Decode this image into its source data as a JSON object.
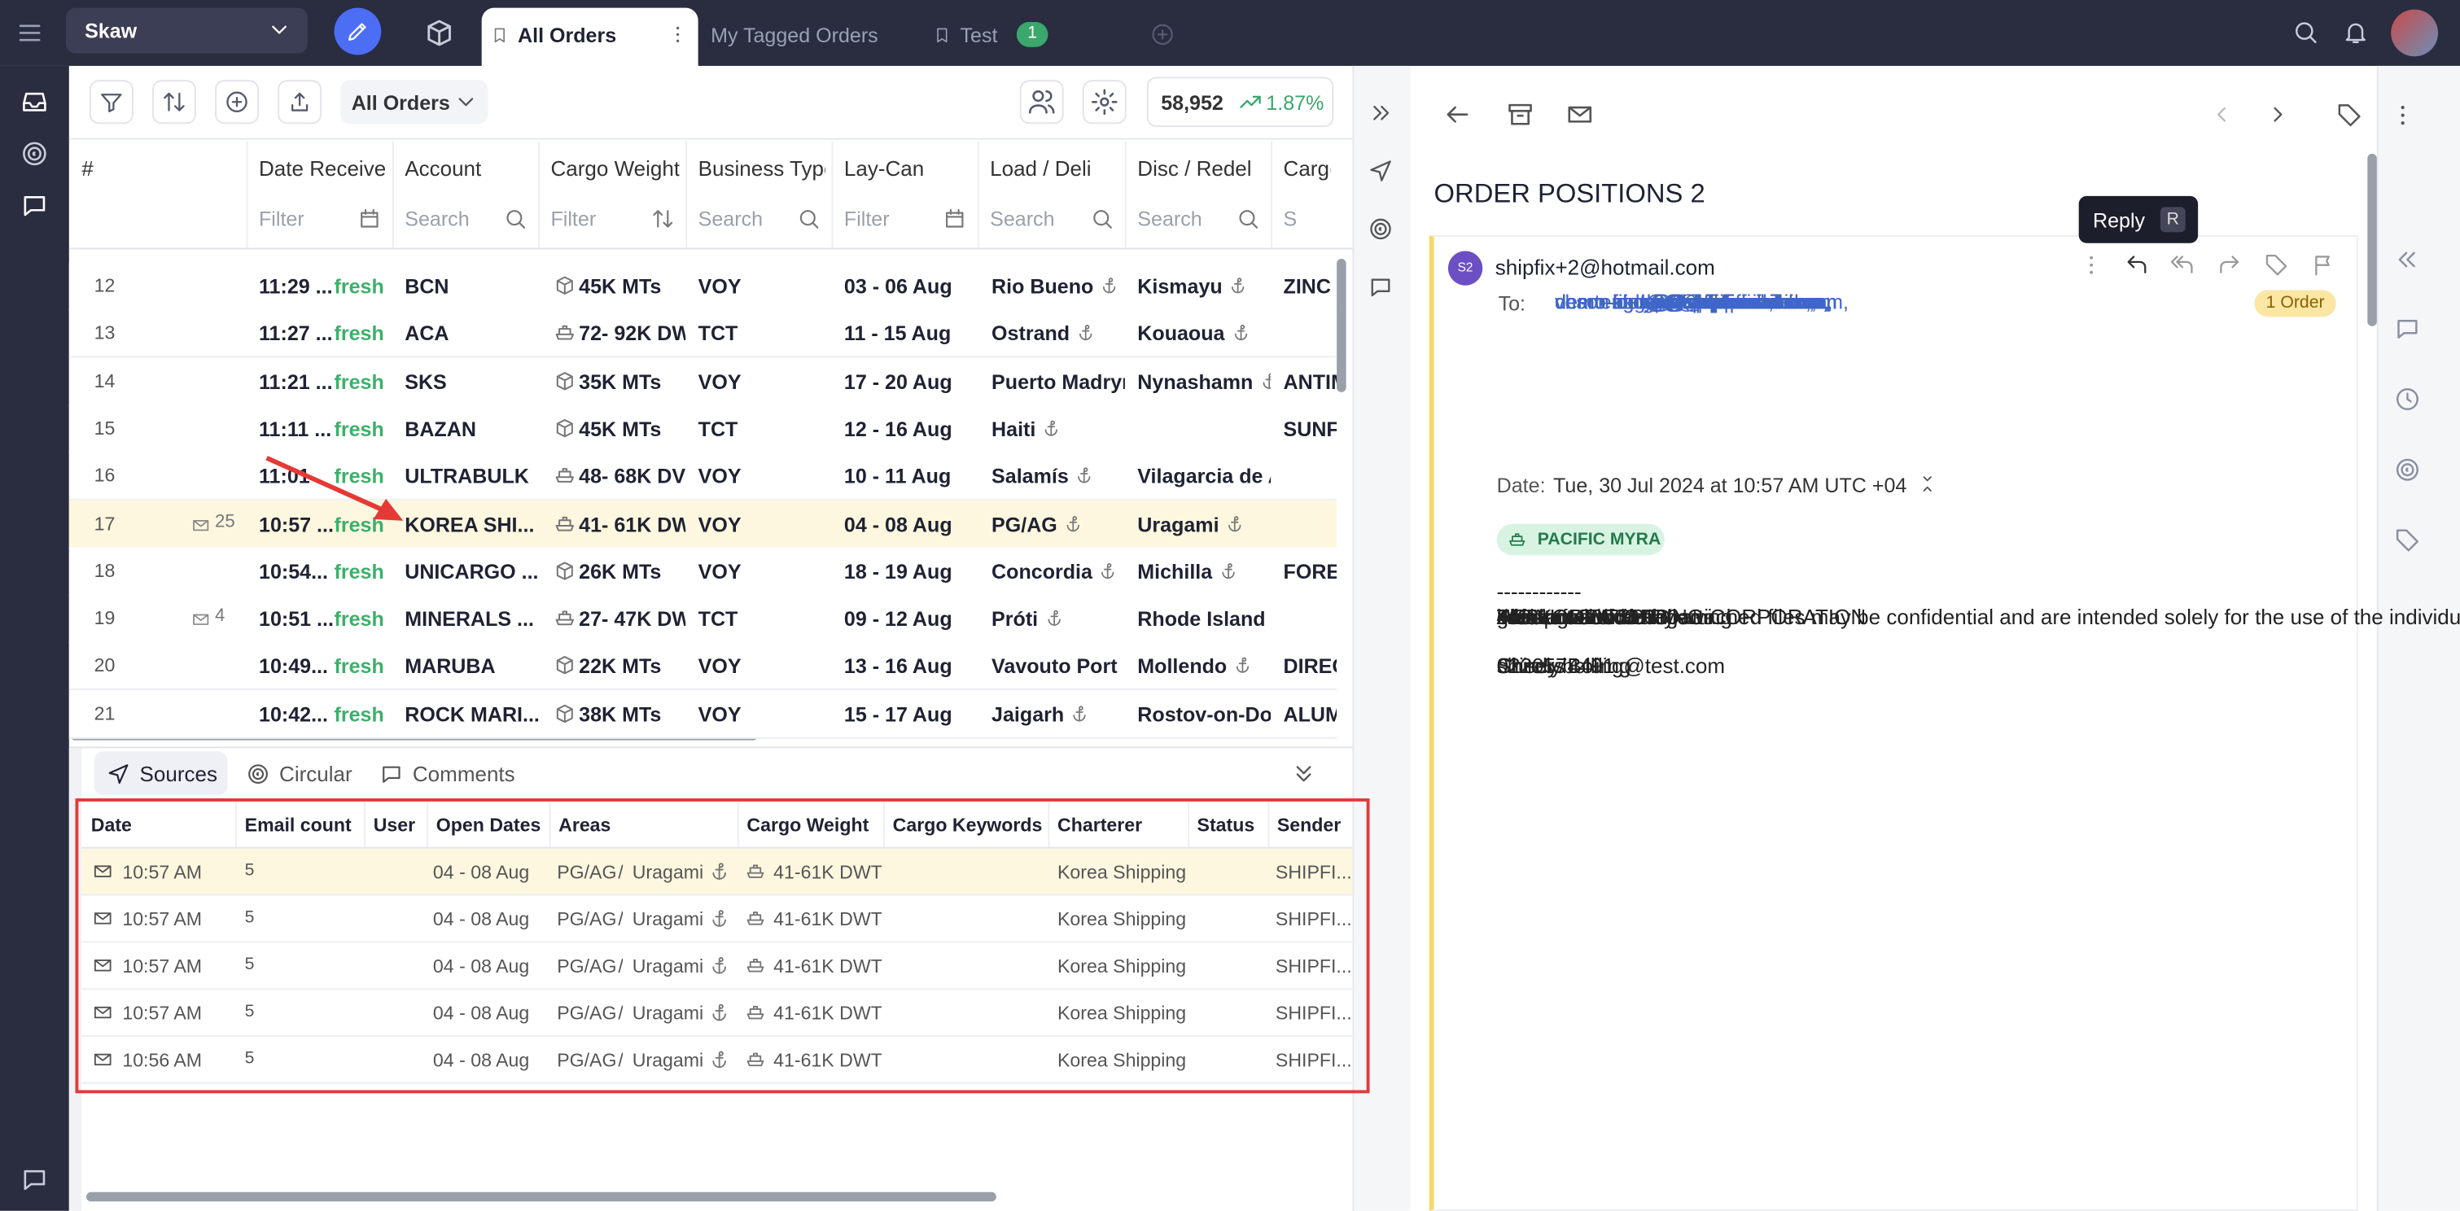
{
  "app": {
    "workspace": "Skaw",
    "tabs": [
      {
        "label": "All Orders"
      },
      {
        "label": "My Tagged Orders"
      },
      {
        "label": "Test",
        "badge": "1"
      }
    ]
  },
  "toolbar": {
    "view": "All Orders",
    "count": "58,952",
    "change": "1.87%"
  },
  "orders": {
    "columns": [
      "#",
      "Date Received",
      "Account",
      "Cargo Weight",
      "Business Type",
      "Lay-Can",
      "Load / Deli",
      "Disc / Redel",
      "Cargo"
    ],
    "filters": [
      null,
      "Filter",
      "Search",
      "Filter",
      "Search",
      "Filter",
      "Search",
      "Search",
      "Search"
    ],
    "rows": [
      {
        "no": 12,
        "date": "11:29 ...",
        "mails": null,
        "tag": "fresh",
        "account": "BCN",
        "weight": "45K MTs",
        "business": "VOY",
        "laycan": "03 - 06 Aug",
        "load": "Rio Bueno",
        "disc": "Kismayu",
        "cargo": "ZINC"
      },
      {
        "no": 13,
        "date": "11:27 ...",
        "mails": null,
        "tag": "fresh",
        "account": "ACA",
        "weight": "72- 92K DW",
        "business": "TCT",
        "laycan": "11 - 15 Aug",
        "load": "Ostrand",
        "disc": "Kouaoua",
        "cargo": null
      },
      {
        "no": 14,
        "date": "11:21 ...",
        "mails": null,
        "tag": "fresh",
        "account": "SKS",
        "weight": "35K MTs",
        "business": "VOY",
        "laycan": "17 - 20 Aug",
        "load": "Puerto Madryn",
        "disc": "Nynashamn",
        "cargo": "ANTIM"
      },
      {
        "no": 15,
        "date": "11:11 ...",
        "mails": null,
        "tag": "fresh",
        "account": "BAZAN",
        "weight": "45K MTs",
        "business": "TCT",
        "laycan": "12 - 16 Aug",
        "load": "Haiti",
        "disc": null,
        "cargo": "SUNF"
      },
      {
        "no": 16,
        "date": "11:01",
        "mails": null,
        "tag": "fresh",
        "account": "ULTRABULK",
        "weight": "48- 68K DV",
        "business": "VOY",
        "laycan": "10 - 11 Aug",
        "load": "Salamís",
        "disc": "Vilagarcia de A",
        "cargo": null
      },
      {
        "no": 17,
        "date": "10:57 ...",
        "mails": "25",
        "tag": "fresh",
        "account": "KOREA SHI...",
        "weight": "41- 61K DW",
        "business": "VOY",
        "laycan": "04 - 08 Aug",
        "load": "PG/AG",
        "disc": "Uragami",
        "cargo": null
      },
      {
        "no": 18,
        "date": "10:54...",
        "mails": null,
        "tag": "fresh",
        "account": "UNICARGO ...",
        "weight": "26K MTs",
        "business": "VOY",
        "laycan": "18 - 19 Aug",
        "load": "Concordia",
        "disc": "Michilla",
        "cargo": "FORE"
      },
      {
        "no": 19,
        "date": "10:51 ...",
        "mails": "4",
        "tag": "fresh",
        "account": "MINERALS ...",
        "weight": "27- 47K DW",
        "business": "TCT",
        "laycan": "09 - 12 Aug",
        "load": "Próti",
        "disc": "Rhode Island (U",
        "cargo": null
      },
      {
        "no": 20,
        "date": "10:49...",
        "mails": null,
        "tag": "fresh",
        "account": "MARUBA",
        "weight": "22K MTs",
        "business": "VOY",
        "laycan": "13 - 16 Aug",
        "load": "Vavouto Port",
        "disc": "Mollendo",
        "cargo": "DIREC"
      },
      {
        "no": 21,
        "date": "10:42...",
        "mails": null,
        "tag": "fresh",
        "account": "ROCK MARI...",
        "weight": "38K MTs",
        "business": "VOY",
        "laycan": "15 - 17 Aug",
        "load": "Jaigarh",
        "disc": "Rostov-on-Dor",
        "cargo": "ALUM"
      }
    ]
  },
  "sources": {
    "tabs": [
      "Sources",
      "Circular",
      "Comments"
    ],
    "columns": [
      "Date",
      "Email count",
      "User",
      "Open Dates",
      "Areas",
      "Cargo Weight",
      "Cargo Keywords",
      "Charterer",
      "Status",
      "Sender"
    ],
    "rows": [
      {
        "date": "10:57 AM",
        "count": 5,
        "open": "04 - 08 Aug",
        "areas": [
          "PG/AG",
          "/",
          "Uragami"
        ],
        "weight": "41-61K DWT",
        "charterer": "Korea Shipping",
        "sender": "SHIPFI..."
      },
      {
        "date": "10:57 AM",
        "count": 5,
        "open": "04 - 08 Aug",
        "areas": [
          "PG/AG",
          "/",
          "Uragami"
        ],
        "weight": "41-61K DWT",
        "charterer": "Korea Shipping",
        "sender": "SHIPFI..."
      },
      {
        "date": "10:57 AM",
        "count": 5,
        "open": "04 - 08 Aug",
        "areas": [
          "PG/AG",
          "/",
          "Uragami"
        ],
        "weight": "41-61K DWT",
        "charterer": "Korea Shipping",
        "sender": "SHIPFI..."
      },
      {
        "date": "10:57 AM",
        "count": 5,
        "open": "04 - 08 Aug",
        "areas": [
          "PG/AG",
          "/",
          "Uragami"
        ],
        "weight": "41-61K DWT",
        "charterer": "Korea Shipping",
        "sender": "SHIPFI..."
      },
      {
        "date": "10:56 AM",
        "count": 5,
        "open": "04 - 08 Aug",
        "areas": [
          "PG/AG",
          "/",
          "Uragami"
        ],
        "weight": "41-61K DWT",
        "charterer": "Korea Shipping",
        "sender": "SHIPFI..."
      }
    ]
  },
  "email": {
    "title": "ORDER POSITIONS 2",
    "tooltip": {
      "label": "Reply",
      "key": "R"
    },
    "avatar": "S2",
    "from": "shipfix+2@hotmail.com",
    "to_label": "To:",
    "to": [
      "demo-filos@shipfixmail.com,",
      "demo-stat@shipfixmail.com,",
      "chartering@shipfix.com,",
      "demo-aidwil@shipfixmail.com,",
      "demo-cscga@shipfixmail.com,",
      "demo-cscyh@shipfixmail.com,",
      "demo-sgdm@shipfixmail.com,",
      "demo-lond@shipfixmail.com,",
      "demo-kgdm@shipfixmail.com,",
      "demo-cscem1@shipfixmail.com,",
      "veson-demo@shipfixmail.com,",
      "demo-cscap1@shipfixmail.com"
    ],
    "orders_badge": "1 Order",
    "date_label": "Date:",
    "date": "Tue, 30 Jul 2024 at 10:57 AM UTC +04",
    "tag": "PACIFIC MYRA",
    "body": [
      [
        "------------",
        "------------"
      ],
      [
        "good afternoon"
      ],
      [
        "Please note the following",
        "A/C KOREA SHIPING CORPORATION",
        "41/61K DWT GRD",
        "4/8 Aug",
        "Arabian Gulf / Uragami",
        "l/d rate : 2000/2000",
        "3.75 pct addcom"
      ],
      [
        "Cheers",
        "Shirely Bolling",
        "0220574491",
        "shirely.bolling@test.com"
      ],
      [
        "--",
        "This email and any attached files may be confidential and are intended solely for the use of the individual(s) to whom it is addressed. Any views or opinions expressed herein are solely those of the author and do not necessarily represent those of the company. The Shipfix Privacy Policy explains how we collect and use personal data and can be found at"
      ]
    ]
  }
}
